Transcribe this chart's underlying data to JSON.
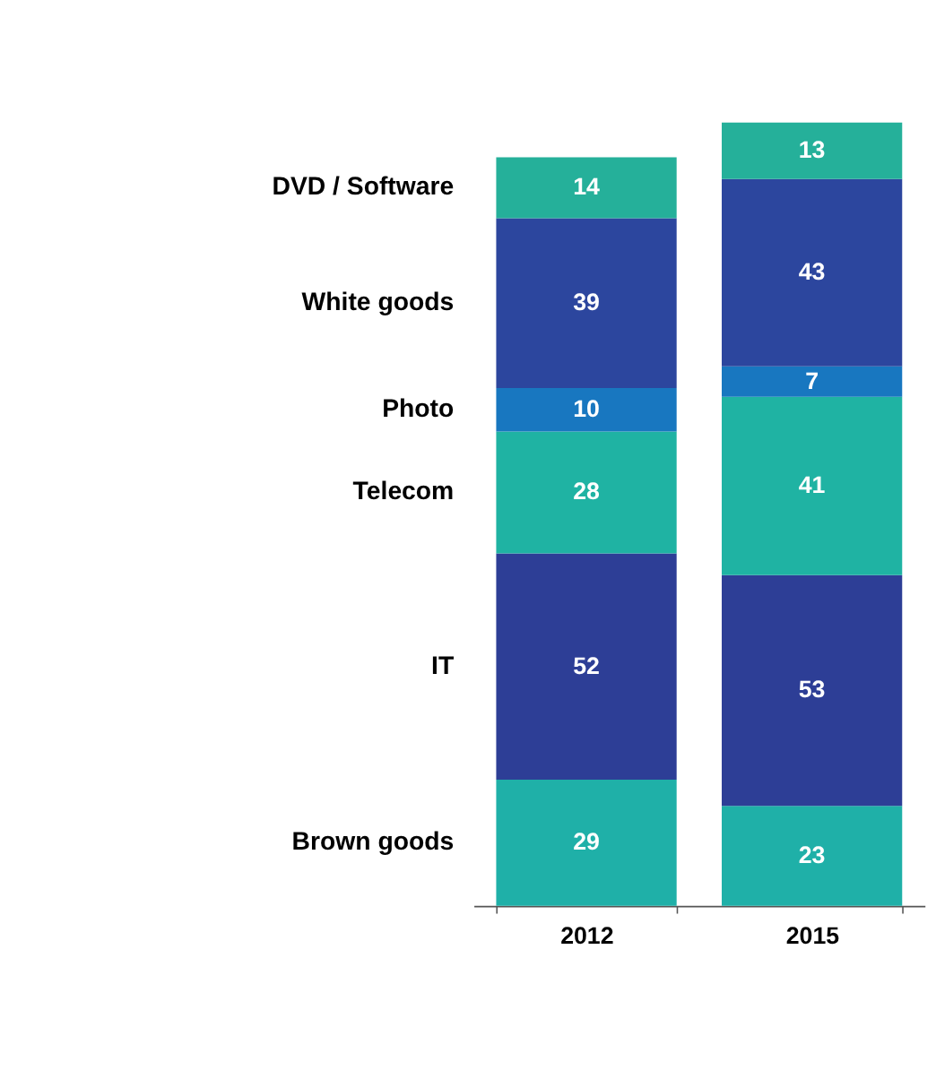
{
  "chart_data": {
    "type": "bar",
    "stacked": true,
    "data_labels": true,
    "categories": [
      "2012",
      "2015"
    ],
    "series": [
      {
        "name": "Brown goods",
        "color": "#1fb0a8",
        "values": [
          29,
          23
        ]
      },
      {
        "name": "IT",
        "color": "#2d3e96",
        "values": [
          52,
          53
        ]
      },
      {
        "name": "Telecom",
        "color": "#1fb3a3",
        "values": [
          28,
          41
        ]
      },
      {
        "name": "Photo",
        "color": "#1877c0",
        "values": [
          10,
          7
        ]
      },
      {
        "name": "White goods",
        "color": "#2c469e",
        "values": [
          39,
          43
        ]
      },
      {
        "name": "DVD / Software",
        "color": "#25b09a",
        "values": [
          14,
          13
        ]
      }
    ]
  }
}
